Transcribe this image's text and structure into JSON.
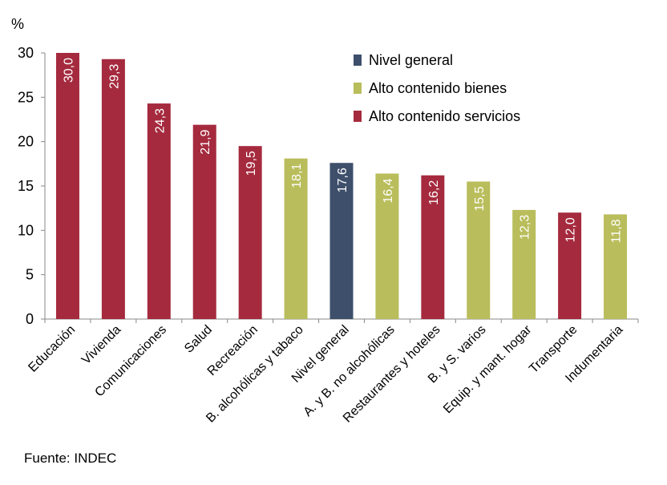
{
  "chart_data": {
    "type": "bar",
    "ylabel": "%",
    "ylim": [
      0,
      30
    ],
    "yticks": [
      "0",
      "5",
      "10",
      "15",
      "20",
      "25",
      "30"
    ],
    "categories": [
      "Educación",
      "Vivienda",
      "Comunicaciones",
      "Salud",
      "Recreación",
      "B. alcohólicas y tabaco",
      "Nivel general",
      "A. y B. no alcohólicas",
      "Restaurantes y hoteles",
      "B. y S. varios",
      "Equip. y mant. hogar",
      "Transporte",
      "Indumentaria"
    ],
    "values": [
      30.0,
      29.3,
      24.3,
      21.9,
      19.5,
      18.1,
      17.6,
      16.4,
      16.2,
      15.5,
      12.3,
      12.0,
      11.8
    ],
    "value_labels": [
      "30,0",
      "29,3",
      "24,3",
      "21,9",
      "19,5",
      "18,1",
      "17,6",
      "16,4",
      "16,2",
      "15,5",
      "12,3",
      "12,0",
      "11,8"
    ],
    "groups": [
      "servicios",
      "servicios",
      "servicios",
      "servicios",
      "servicios",
      "bienes",
      "general",
      "bienes",
      "servicios",
      "bienes",
      "bienes",
      "servicios",
      "bienes"
    ],
    "legend": [
      {
        "key": "general",
        "label": "Nivel general",
        "color": "#3e4f6b"
      },
      {
        "key": "bienes",
        "label": "Alto contenido bienes",
        "color": "#b9bd5b"
      },
      {
        "key": "servicios",
        "label": "Alto contenido servicios",
        "color": "#a52a3e"
      }
    ],
    "legend_position": "top-right",
    "grid": false
  },
  "source": "Fuente:  INDEC"
}
